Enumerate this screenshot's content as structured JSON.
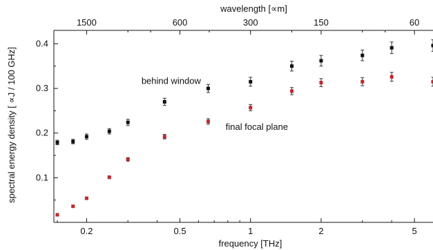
{
  "chart_data": {
    "type": "scatter",
    "title": "",
    "xlabel": "frequency [THz]",
    "x2label": "wavelength [∝m]",
    "ylabel": "spectral energy density  [ ∝J / 100 GHz]",
    "x_scale": "log",
    "xlim": [
      0.145,
      6.0
    ],
    "ylim": [
      0.0,
      0.43
    ],
    "x_ticks": [
      0.2,
      0.5,
      1,
      2,
      5
    ],
    "x_tick_labels": [
      "0.2",
      "0.5",
      "1",
      "2",
      "5"
    ],
    "y_ticks": [
      0.1,
      0.2,
      0.3,
      0.4
    ],
    "y_tick_labels": [
      "0.1",
      "0.2",
      "0.3",
      "0.4"
    ],
    "top_axis_ticks_um": [
      1500,
      600,
      300,
      150,
      60
    ],
    "top_axis_tick_labels": [
      "1500",
      "600",
      "300",
      "150",
      "60"
    ],
    "grid": false,
    "series": [
      {
        "name": "behind window",
        "color": "#111111",
        "x": [
          0.15,
          0.175,
          0.2,
          0.25,
          0.3,
          0.43,
          0.66,
          1.0,
          1.5,
          2.0,
          3.0,
          4.0,
          6.0
        ],
        "y": [
          0.179,
          0.181,
          0.192,
          0.204,
          0.224,
          0.27,
          0.3,
          0.315,
          0.35,
          0.362,
          0.374,
          0.391,
          0.396
        ],
        "err": [
          0.005,
          0.005,
          0.006,
          0.006,
          0.007,
          0.008,
          0.009,
          0.01,
          0.011,
          0.012,
          0.012,
          0.013,
          0.013
        ]
      },
      {
        "name": "final focal plane",
        "color": "#c0282d",
        "x": [
          0.15,
          0.175,
          0.2,
          0.25,
          0.3,
          0.43,
          0.66,
          1.0,
          1.5,
          2.0,
          3.0,
          4.0,
          6.0
        ],
        "y": [
          0.017,
          0.036,
          0.054,
          0.101,
          0.141,
          0.192,
          0.226,
          0.257,
          0.294,
          0.313,
          0.315,
          0.326,
          0.315
        ],
        "err": [
          0.002,
          0.002,
          0.002,
          0.003,
          0.004,
          0.005,
          0.006,
          0.007,
          0.008,
          0.009,
          0.009,
          0.01,
          0.01
        ]
      }
    ],
    "annotations": [
      {
        "text": "behind window",
        "x": 0.42,
        "y": 0.318
      },
      {
        "text": "final focal plane",
        "x": 1.0,
        "y": 0.215
      }
    ]
  }
}
